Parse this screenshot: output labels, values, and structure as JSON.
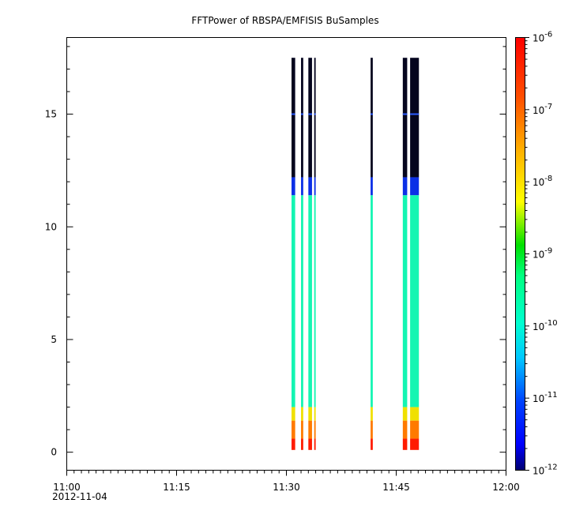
{
  "chart_data": {
    "type": "heatmap",
    "title": "FFTPower of RBSPA/EMFISIS  BuSamples",
    "xlabel": "",
    "ylabel": "",
    "x_ticks": [
      "11:00",
      "11:15",
      "11:30",
      "11:45",
      "12:00"
    ],
    "x_date_label": "2012-11-04",
    "x_range_minutes": [
      0,
      60
    ],
    "ylim": [
      -0.8,
      18.4
    ],
    "y_ticks": [
      0,
      5,
      10,
      15
    ],
    "colorbar": {
      "scale": "log",
      "range": [
        1e-12,
        1e-06
      ],
      "ticks": [
        {
          "mant": "10",
          "exp": "-12"
        },
        {
          "mant": "10",
          "exp": "-11"
        },
        {
          "mant": "10",
          "exp": "-10"
        },
        {
          "mant": "10",
          "exp": "-9"
        },
        {
          "mant": "10",
          "exp": "-8"
        },
        {
          "mant": "10",
          "exp": "-7"
        },
        {
          "mant": "10",
          "exp": "-6"
        }
      ]
    },
    "data_columns_minutes": [
      {
        "start": 30.7,
        "end": 31.2
      },
      {
        "start": 32.0,
        "end": 32.3
      },
      {
        "start": 33.0,
        "end": 33.5
      },
      {
        "start": 33.8,
        "end": 34.0
      },
      {
        "start": 41.5,
        "end": 41.8
      },
      {
        "start": 45.9,
        "end": 46.5
      },
      {
        "start": 46.9,
        "end": 48.1
      }
    ],
    "spectrum_bands": [
      {
        "y_from": 12.2,
        "y_to": 17.5,
        "color": "#05051e",
        "level": "below 1e-12"
      },
      {
        "y_from": 11.4,
        "y_to": 12.2,
        "color": "#0b2fe6",
        "level": "~1e-11"
      },
      {
        "y_from": 2.0,
        "y_to": 11.4,
        "color": "#14f5b2",
        "level": "~1e-10"
      },
      {
        "y_from": 1.4,
        "y_to": 2.0,
        "color": "#f0e000",
        "level": "~1e-8"
      },
      {
        "y_from": 0.6,
        "y_to": 1.4,
        "color": "#ff7a00",
        "level": "~1e-7"
      },
      {
        "y_from": 0.1,
        "y_to": 0.6,
        "color": "#ff1c00",
        "level": "~1e-6"
      }
    ],
    "line_at_y": 15
  }
}
